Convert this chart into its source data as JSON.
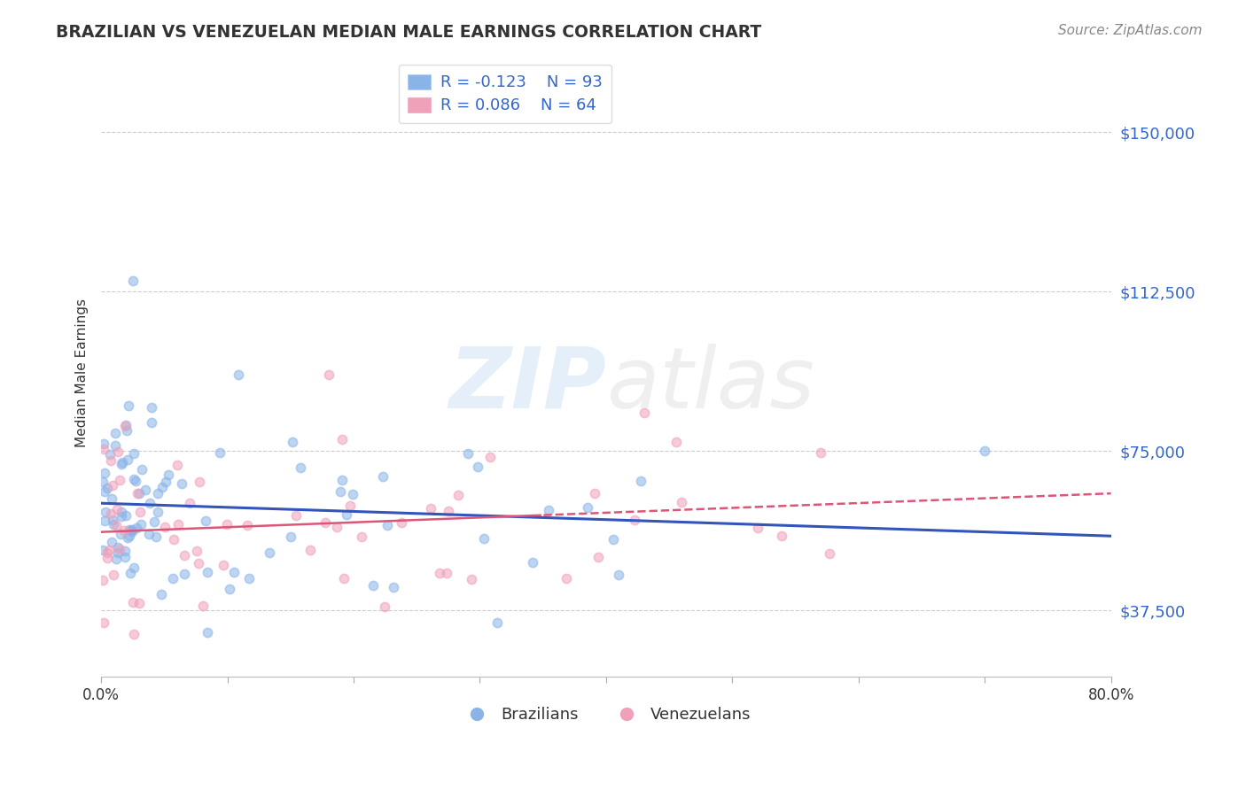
{
  "title": "BRAZILIAN VS VENEZUELAN MEDIAN MALE EARNINGS CORRELATION CHART",
  "source_text": "Source: ZipAtlas.com",
  "ylabel": "Median Male Earnings",
  "xlim": [
    0.0,
    0.8
  ],
  "yticks": [
    37500,
    75000,
    112500,
    150000
  ],
  "ytick_labels": [
    "$37,500",
    "$75,000",
    "$112,500",
    "$150,000"
  ],
  "xticks": [
    0.0,
    0.1,
    0.2,
    0.3,
    0.4,
    0.5,
    0.6,
    0.7,
    0.8
  ],
  "xtick_labels": [
    "0.0%",
    "",
    "",
    "",
    "",
    "",
    "",
    "",
    "80.0%"
  ],
  "brazil_color": "#8ab4e8",
  "venezuela_color": "#f0a0b8",
  "brazil_R": -0.123,
  "brazil_N": 93,
  "venezuela_R": 0.086,
  "venezuela_N": 64,
  "brazil_line_color": "#3355bb",
  "venezuela_line_color": "#dd5577",
  "grid_color": "#cccccc",
  "background_color": "#ffffff",
  "title_color": "#333333",
  "axis_label_color": "#333333",
  "tick_color": "#3366cc",
  "legend_brazil_label": "R = -0.123    N = 93",
  "legend_venezuela_label": "R = 0.086    N = 64"
}
